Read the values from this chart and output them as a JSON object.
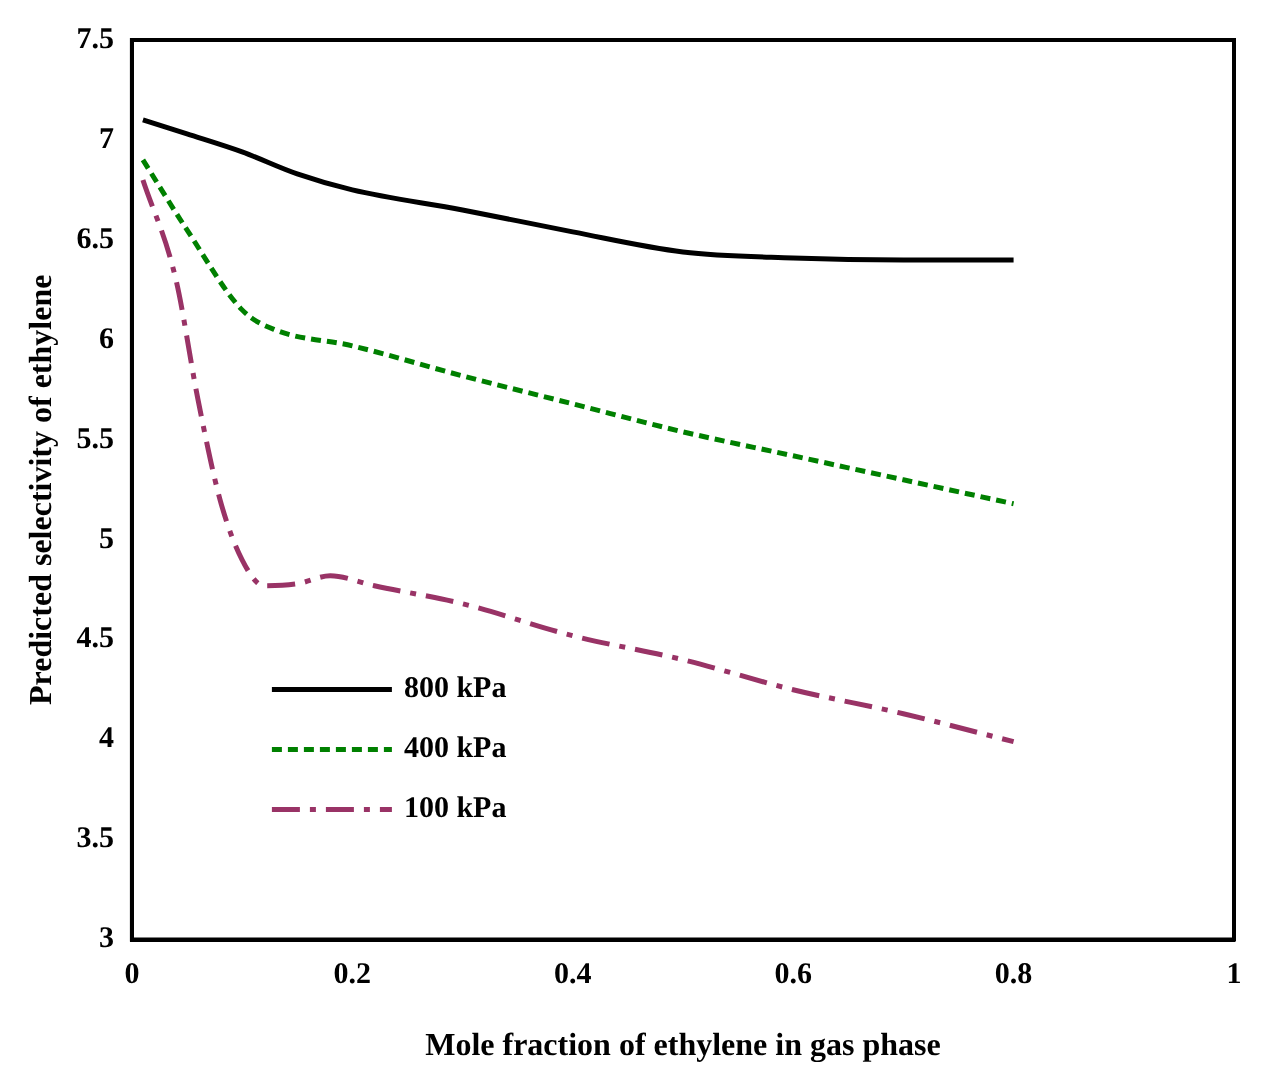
{
  "chart_data": {
    "type": "line",
    "xlabel": "Mole fraction of ethylene in gas phase",
    "ylabel": "Predicted selectivity of ethylene",
    "xlim": [
      0,
      1
    ],
    "xticks": [
      0,
      0.2,
      0.4,
      0.6,
      0.8,
      1
    ],
    "ylim": [
      3,
      7.5
    ],
    "yticks": [
      3,
      3.5,
      4,
      4.5,
      5,
      5.5,
      6,
      6.5,
      7,
      7.5
    ],
    "grid": false,
    "legend": "bottom left",
    "marker": "none",
    "series": [
      {
        "name": "800 kPa",
        "color": "#000000",
        "line_style": "solid",
        "x": [
          0.01,
          0.05,
          0.1,
          0.15,
          0.2,
          0.3,
          0.4,
          0.5,
          0.6,
          0.7,
          0.8
        ],
        "values": [
          7.1,
          7.03,
          6.94,
          6.83,
          6.75,
          6.65,
          6.54,
          6.44,
          6.41,
          6.4,
          6.4
        ]
      },
      {
        "name": "400 kPa",
        "color": "#008000",
        "line_style": "dotted",
        "x": [
          0.01,
          0.05,
          0.1,
          0.13,
          0.2,
          0.3,
          0.4,
          0.5,
          0.6,
          0.7,
          0.8
        ],
        "values": [
          6.9,
          6.55,
          6.15,
          6.05,
          5.97,
          5.82,
          5.68,
          5.54,
          5.42,
          5.3,
          5.18
        ]
      },
      {
        "name": "100 kPa",
        "color": "#993366",
        "line_style": "dashed",
        "x": [
          0.01,
          0.04,
          0.06,
          0.08,
          0.1,
          0.12,
          0.15,
          0.18,
          0.22,
          0.3,
          0.4,
          0.5,
          0.6,
          0.7,
          0.8
        ],
        "values": [
          6.8,
          6.3,
          5.7,
          5.2,
          4.9,
          4.77,
          4.78,
          4.82,
          4.77,
          4.68,
          4.52,
          4.4,
          4.25,
          4.13,
          3.99
        ]
      }
    ]
  }
}
